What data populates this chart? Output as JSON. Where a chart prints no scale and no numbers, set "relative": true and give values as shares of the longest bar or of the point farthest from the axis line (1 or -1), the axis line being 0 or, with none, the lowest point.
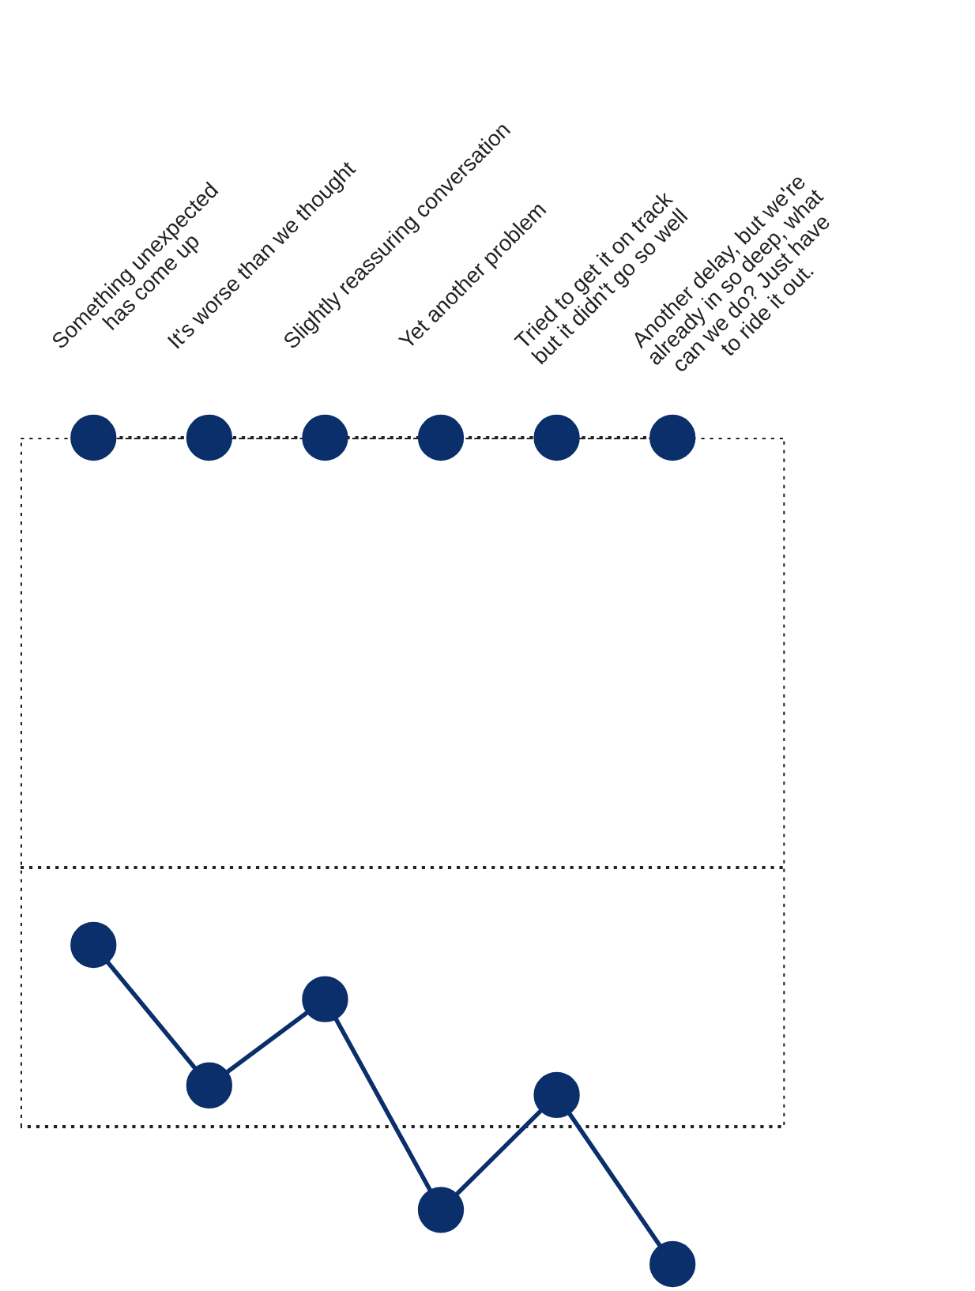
{
  "chart_data": {
    "type": "line",
    "relative": true,
    "categories": [
      null,
      null,
      null,
      null,
      null,
      null
    ],
    "annotations": [
      "Something unexpected\nhas come up",
      "It's worse than we thought",
      "Slightly reassuring conversation",
      "Yet another problem",
      "Tried to get it on track\nbut it didn't go so well",
      "Another delay, but we're\nalready in so deep, what\ncan we do? Just have\nto ride it out."
    ],
    "series": [
      {
        "color": "#0a2f6b",
        "values": [
          1.0,
          0.56,
          0.83,
          0.17,
          0.53,
          0.0
        ]
      }
    ],
    "marker": "circle",
    "line_style": "solid",
    "grid": false,
    "legend": false
  }
}
